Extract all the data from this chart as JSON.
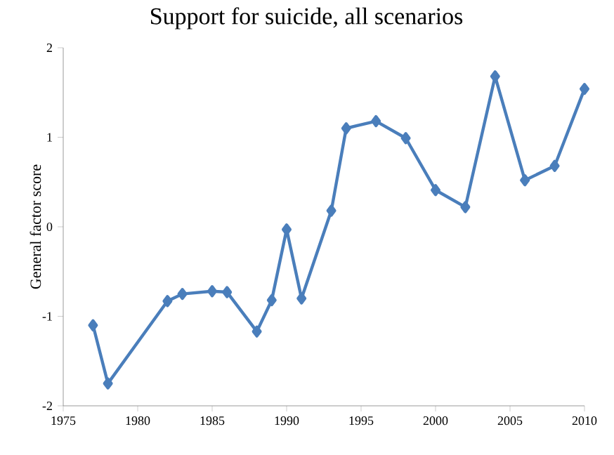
{
  "chart_data": {
    "type": "line",
    "title": "Support for suicide, all scenarios",
    "ylabel": "General factor score",
    "x": [
      1977,
      1978,
      1982,
      1983,
      1985,
      1986,
      1988,
      1989,
      1990,
      1991,
      1993,
      1994,
      1996,
      1998,
      2000,
      2002,
      2004,
      2006,
      2008,
      2010
    ],
    "series": [
      {
        "color": "#4a7ebb",
        "values": [
          -1.1,
          -1.75,
          -0.83,
          -0.75,
          -0.72,
          -0.73,
          -1.17,
          -0.82,
          -0.03,
          -0.8,
          0.18,
          1.1,
          1.18,
          0.99,
          0.41,
          0.22,
          1.68,
          0.52,
          0.68,
          1.54
        ]
      }
    ],
    "xlim": [
      1975,
      2010
    ],
    "xticks": [
      1975,
      1980,
      1985,
      1990,
      1995,
      2000,
      2005,
      2010
    ],
    "ylim": [
      -2,
      2
    ],
    "yticks": [
      -2,
      -1,
      0,
      1,
      2
    ],
    "marker": "diamond",
    "line_style": "solid",
    "grid": false
  }
}
